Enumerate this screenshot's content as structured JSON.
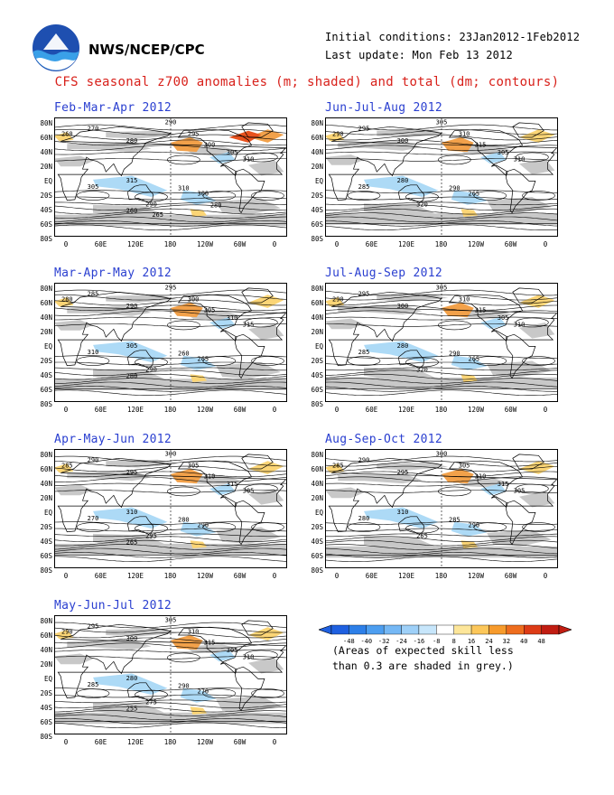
{
  "header": {
    "org": "NWS/NCEP/CPC",
    "initial_conditions": "Initial conditions: 23Jan2012-1Feb2012",
    "last_update": "Last update: Mon Feb 13 2012",
    "title": "CFS seasonal z700 anomalies (m; shaded) and total (dm; contours)"
  },
  "axes": {
    "lat_labels": [
      "80N",
      "60N",
      "40N",
      "20N",
      "EQ",
      "20S",
      "40S",
      "60S",
      "80S"
    ],
    "lon_labels": [
      "0",
      "60E",
      "120E",
      "180",
      "120W",
      "60W",
      "0"
    ]
  },
  "panels": [
    {
      "title": "Feb-Mar-Apr 2012",
      "contour_labels": [
        "260",
        "270",
        "280",
        "290",
        "295",
        "300",
        "305",
        "310",
        "315",
        "305",
        "310",
        "300",
        "290",
        "260",
        "280",
        "265"
      ]
    },
    {
      "title": "Mar-Apr-May 2012",
      "contour_labels": [
        "280",
        "285",
        "290",
        "295",
        "300",
        "305",
        "310",
        "315",
        "305",
        "310",
        "260",
        "265",
        "290",
        "280"
      ]
    },
    {
      "title": "Apr-May-Jun 2012",
      "contour_labels": [
        "285",
        "290",
        "295",
        "300",
        "305",
        "310",
        "315",
        "305",
        "310",
        "270",
        "280",
        "290",
        "295",
        "265"
      ]
    },
    {
      "title": "May-Jun-Jul 2012",
      "contour_labels": [
        "290",
        "295",
        "300",
        "305",
        "310",
        "315",
        "305",
        "310",
        "280",
        "285",
        "290",
        "270",
        "275",
        "255"
      ]
    },
    {
      "title": "Jun-Jul-Aug 2012",
      "contour_labels": [
        "290",
        "295",
        "300",
        "305",
        "310",
        "315",
        "305",
        "310",
        "280",
        "285",
        "290",
        "265",
        "320"
      ]
    },
    {
      "title": "Jul-Aug-Sep 2012",
      "contour_labels": [
        "290",
        "295",
        "300",
        "305",
        "310",
        "315",
        "305",
        "310",
        "280",
        "285",
        "290",
        "265",
        "320"
      ]
    },
    {
      "title": "Aug-Sep-Oct 2012",
      "contour_labels": [
        "285",
        "290",
        "295",
        "300",
        "305",
        "310",
        "315",
        "305",
        "310",
        "280",
        "285",
        "290",
        "265"
      ]
    }
  ],
  "colorbar": {
    "ticks": [
      "-48",
      "-40",
      "-32",
      "-24",
      "-16",
      "-8",
      "8",
      "16",
      "24",
      "32",
      "40",
      "48"
    ],
    "colors": [
      "#1f60e0",
      "#2d7fe8",
      "#4d9ef0",
      "#75b8f5",
      "#9ed0f8",
      "#c7e6fb",
      "#ffffff",
      "#fde69a",
      "#fcc75a",
      "#f79b2c",
      "#ee6d1e",
      "#dd3b16",
      "#c11d12"
    ]
  },
  "note": {
    "line1": "(Areas of expected skill less",
    "line2": "than 0.3 are shaded in grey.)"
  },
  "colors": {
    "title_red": "#d8201a",
    "panel_title_blue": "#2a3fd0",
    "skill_grey": "#c8c8c8",
    "negative_blue": "#a9d8f5",
    "positive_orange": "#f2a14a",
    "strong_positive": "#e8521e"
  }
}
